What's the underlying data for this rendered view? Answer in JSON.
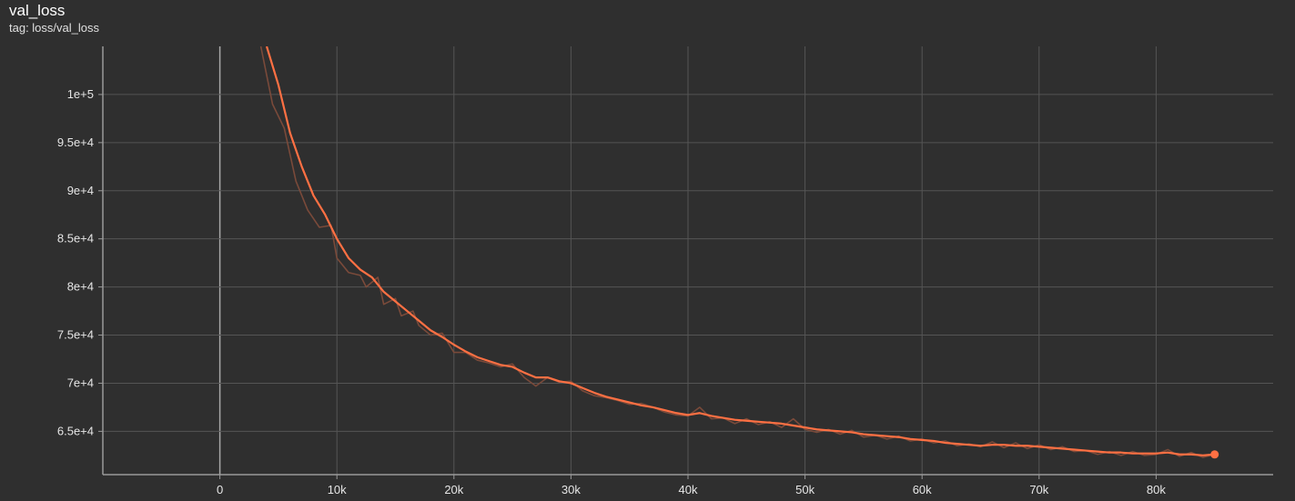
{
  "header": {
    "title": "val_loss",
    "tag": "tag: loss/val_loss"
  },
  "colors": {
    "background": "#2f2f2f",
    "grid": "#555555",
    "axis": "#9a9a9a",
    "smoothed": "#ff7043",
    "raw": "#7a4a3a"
  },
  "chart_data": {
    "type": "line",
    "title": "val_loss",
    "subtitle": "tag: loss/val_loss",
    "xlabel": "",
    "ylabel": "",
    "xlim": [
      -10000,
      90000
    ],
    "ylim": [
      60500,
      105000
    ],
    "grid": true,
    "x_ticks": [
      0,
      10000,
      20000,
      30000,
      40000,
      50000,
      60000,
      70000,
      80000
    ],
    "x_tick_labels": [
      "0",
      "10k",
      "20k",
      "30k",
      "40k",
      "50k",
      "60k",
      "70k",
      "80k"
    ],
    "y_ticks": [
      65000,
      70000,
      75000,
      80000,
      85000,
      90000,
      95000,
      100000
    ],
    "y_tick_labels": [
      "6.5e+4",
      "7e+4",
      "7.5e+4",
      "8e+4",
      "8.5e+4",
      "9e+4",
      "9.5e+4",
      "1e+5"
    ],
    "series": [
      {
        "role": "smoothed",
        "points": [
          [
            4000,
            105000
          ],
          [
            5000,
            101000
          ],
          [
            6000,
            96000
          ],
          [
            7000,
            92500
          ],
          [
            8000,
            89500
          ],
          [
            9000,
            87500
          ],
          [
            10000,
            85000
          ],
          [
            11000,
            83000
          ],
          [
            12000,
            81800
          ],
          [
            13000,
            81000
          ],
          [
            14000,
            79500
          ],
          [
            15000,
            78500
          ],
          [
            16000,
            77500
          ],
          [
            17000,
            76500
          ],
          [
            18000,
            75500
          ],
          [
            19000,
            74800
          ],
          [
            20000,
            74000
          ],
          [
            21000,
            73300
          ],
          [
            22000,
            72700
          ],
          [
            23000,
            72300
          ],
          [
            24000,
            71900
          ],
          [
            25000,
            71700
          ],
          [
            26000,
            71100
          ],
          [
            27000,
            70600
          ],
          [
            28000,
            70600
          ],
          [
            29000,
            70200
          ],
          [
            30000,
            70000
          ],
          [
            31000,
            69500
          ],
          [
            32000,
            69000
          ],
          [
            33000,
            68600
          ],
          [
            34000,
            68300
          ],
          [
            35000,
            68000
          ],
          [
            36000,
            67700
          ],
          [
            37000,
            67500
          ],
          [
            38000,
            67200
          ],
          [
            39000,
            66900
          ],
          [
            40000,
            66700
          ],
          [
            41000,
            66900
          ],
          [
            42000,
            66600
          ],
          [
            43000,
            66400
          ],
          [
            44000,
            66200
          ],
          [
            45000,
            66100
          ],
          [
            46000,
            66000
          ],
          [
            47000,
            65900
          ],
          [
            48000,
            65800
          ],
          [
            49000,
            65600
          ],
          [
            50000,
            65400
          ],
          [
            51000,
            65200
          ],
          [
            52000,
            65100
          ],
          [
            53000,
            65000
          ],
          [
            54000,
            64900
          ],
          [
            55000,
            64700
          ],
          [
            56000,
            64600
          ],
          [
            57000,
            64500
          ],
          [
            58000,
            64400
          ],
          [
            59000,
            64200
          ],
          [
            60000,
            64100
          ],
          [
            61000,
            64000
          ],
          [
            62000,
            63800
          ],
          [
            63000,
            63700
          ],
          [
            64000,
            63600
          ],
          [
            65000,
            63500
          ],
          [
            66000,
            63600
          ],
          [
            67000,
            63600
          ],
          [
            68000,
            63500
          ],
          [
            69000,
            63500
          ],
          [
            70000,
            63400
          ],
          [
            71000,
            63300
          ],
          [
            72000,
            63200
          ],
          [
            73000,
            63100
          ],
          [
            74000,
            63000
          ],
          [
            75000,
            62900
          ],
          [
            76000,
            62800
          ],
          [
            77000,
            62800
          ],
          [
            78000,
            62700
          ],
          [
            79000,
            62700
          ],
          [
            80000,
            62700
          ],
          [
            81000,
            62800
          ],
          [
            82000,
            62600
          ],
          [
            83000,
            62600
          ],
          [
            84000,
            62500
          ],
          [
            85000,
            62600
          ]
        ]
      },
      {
        "role": "raw",
        "points": [
          [
            3500,
            105000
          ],
          [
            4500,
            99000
          ],
          [
            5500,
            96500
          ],
          [
            6500,
            91000
          ],
          [
            7500,
            88000
          ],
          [
            8500,
            86200
          ],
          [
            9500,
            86400
          ],
          [
            10000,
            83000
          ],
          [
            11000,
            81500
          ],
          [
            12000,
            81200
          ],
          [
            12500,
            80000
          ],
          [
            13500,
            81000
          ],
          [
            14000,
            78200
          ],
          [
            15000,
            78800
          ],
          [
            15500,
            77000
          ],
          [
            16500,
            77500
          ],
          [
            17000,
            76000
          ],
          [
            18000,
            75000
          ],
          [
            19000,
            75200
          ],
          [
            20000,
            73200
          ],
          [
            21000,
            73200
          ],
          [
            22000,
            72400
          ],
          [
            23000,
            72100
          ],
          [
            24000,
            71700
          ],
          [
            25000,
            72000
          ],
          [
            26000,
            70600
          ],
          [
            27000,
            69700
          ],
          [
            28000,
            70600
          ],
          [
            29000,
            70100
          ],
          [
            30000,
            70200
          ],
          [
            31000,
            69200
          ],
          [
            32000,
            68700
          ],
          [
            33000,
            68500
          ],
          [
            34000,
            68200
          ],
          [
            35000,
            67800
          ],
          [
            36000,
            67900
          ],
          [
            37000,
            67500
          ],
          [
            38000,
            67000
          ],
          [
            39000,
            66700
          ],
          [
            40000,
            66600
          ],
          [
            41000,
            67500
          ],
          [
            42000,
            66300
          ],
          [
            43000,
            66400
          ],
          [
            44000,
            65800
          ],
          [
            45000,
            66300
          ],
          [
            46000,
            65700
          ],
          [
            47000,
            66000
          ],
          [
            48000,
            65400
          ],
          [
            49000,
            66300
          ],
          [
            50000,
            65200
          ],
          [
            51000,
            64900
          ],
          [
            52000,
            65200
          ],
          [
            53000,
            64700
          ],
          [
            54000,
            65100
          ],
          [
            55000,
            64400
          ],
          [
            56000,
            64600
          ],
          [
            57000,
            64200
          ],
          [
            58000,
            64500
          ],
          [
            59000,
            64000
          ],
          [
            60000,
            64200
          ],
          [
            61000,
            63800
          ],
          [
            62000,
            64000
          ],
          [
            63000,
            63500
          ],
          [
            64000,
            63700
          ],
          [
            65000,
            63400
          ],
          [
            66000,
            63900
          ],
          [
            67000,
            63300
          ],
          [
            68000,
            63800
          ],
          [
            69000,
            63200
          ],
          [
            70000,
            63600
          ],
          [
            71000,
            63100
          ],
          [
            72000,
            63400
          ],
          [
            73000,
            62900
          ],
          [
            74000,
            63000
          ],
          [
            75000,
            62600
          ],
          [
            76000,
            62900
          ],
          [
            77000,
            62500
          ],
          [
            78000,
            62900
          ],
          [
            79000,
            62500
          ],
          [
            80000,
            62600
          ],
          [
            81000,
            63100
          ],
          [
            82000,
            62400
          ],
          [
            83000,
            62800
          ],
          [
            84000,
            62300
          ],
          [
            85000,
            62600
          ]
        ]
      }
    ]
  }
}
